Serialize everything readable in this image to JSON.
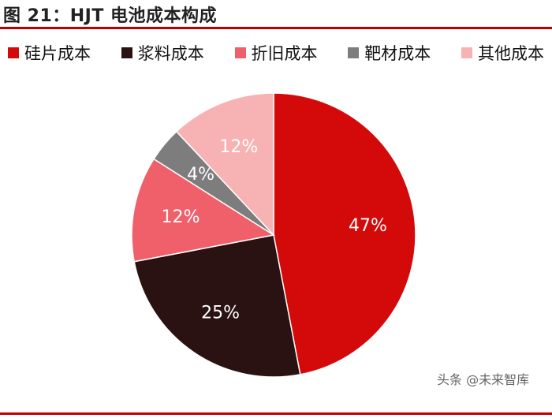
{
  "header": {
    "title": "图 21：HJT 电池成本构成"
  },
  "chart_data": {
    "type": "pie",
    "title": "",
    "slices": [
      {
        "label": "硅片成本",
        "value": 47,
        "display": "47%",
        "color": "#d40a0a"
      },
      {
        "label": "浆料成本",
        "value": 25,
        "display": "25%",
        "color": "#2a1212"
      },
      {
        "label": "折旧成本",
        "value": 12,
        "display": "12%",
        "color": "#f0606b"
      },
      {
        "label": "靶材成本",
        "value": 4,
        "display": "4%",
        "color": "#7d7d7d"
      },
      {
        "label": "其他成本",
        "value": 12,
        "display": "12%",
        "color": "#f7b3b3"
      }
    ],
    "legend_position": "top",
    "start_angle": "12 o'clock",
    "direction": "clockwise",
    "label_color": "#ffffff"
  },
  "watermark": {
    "text": "头条 @未来智库",
    "icon": "wechat-icon"
  }
}
